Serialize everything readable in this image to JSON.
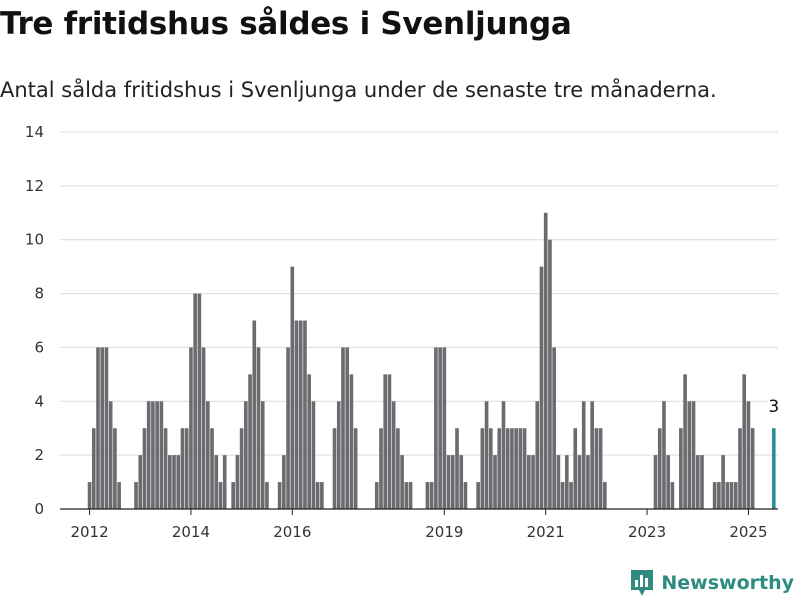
{
  "header": {
    "title": "Tre fritidshus såldes i Svenljunga",
    "subtitle": "Antal sålda fritidshus i Svenljunga under de senaste tre månaderna."
  },
  "brand": {
    "name": "Newsworthy",
    "logo_icon": "bar-chart-pin-icon",
    "color": "#2e8b7f"
  },
  "chart_data": {
    "type": "bar",
    "title": "Tre fritidshus såldes i Svenljunga",
    "subtitle": "Antal sålda fritidshus i Svenljunga under de senaste tre månaderna.",
    "xlabel": "",
    "ylabel": "",
    "ylim": [
      0,
      14
    ],
    "y_ticks": [
      0,
      2,
      4,
      6,
      8,
      10,
      12,
      14
    ],
    "x_ticks": [
      "2012",
      "2014",
      "2016",
      "2019",
      "2021",
      "2023",
      "2025"
    ],
    "grid": "horizontal",
    "x_start": "2011-06",
    "x_end": "2025-08",
    "highlight": {
      "month": "2025-07",
      "value": 3,
      "label": "3",
      "color": "#2a8f92"
    },
    "bar_color": "#6b6b70",
    "values": [
      {
        "x": "2012-01",
        "y": 1
      },
      {
        "x": "2012-02",
        "y": 3
      },
      {
        "x": "2012-03",
        "y": 6
      },
      {
        "x": "2012-04",
        "y": 6
      },
      {
        "x": "2012-05",
        "y": 6
      },
      {
        "x": "2012-06",
        "y": 4
      },
      {
        "x": "2012-07",
        "y": 3
      },
      {
        "x": "2012-08",
        "y": 1
      },
      {
        "x": "2012-12",
        "y": 1
      },
      {
        "x": "2013-01",
        "y": 2
      },
      {
        "x": "2013-02",
        "y": 3
      },
      {
        "x": "2013-03",
        "y": 4
      },
      {
        "x": "2013-04",
        "y": 4
      },
      {
        "x": "2013-05",
        "y": 4
      },
      {
        "x": "2013-06",
        "y": 4
      },
      {
        "x": "2013-07",
        "y": 3
      },
      {
        "x": "2013-08",
        "y": 2
      },
      {
        "x": "2013-09",
        "y": 2
      },
      {
        "x": "2013-10",
        "y": 2
      },
      {
        "x": "2013-11",
        "y": 3
      },
      {
        "x": "2013-12",
        "y": 3
      },
      {
        "x": "2014-01",
        "y": 6
      },
      {
        "x": "2014-02",
        "y": 8
      },
      {
        "x": "2014-03",
        "y": 8
      },
      {
        "x": "2014-04",
        "y": 6
      },
      {
        "x": "2014-05",
        "y": 4
      },
      {
        "x": "2014-06",
        "y": 3
      },
      {
        "x": "2014-07",
        "y": 2
      },
      {
        "x": "2014-08",
        "y": 1
      },
      {
        "x": "2014-09",
        "y": 2
      },
      {
        "x": "2014-11",
        "y": 1
      },
      {
        "x": "2014-12",
        "y": 2
      },
      {
        "x": "2015-01",
        "y": 3
      },
      {
        "x": "2015-02",
        "y": 4
      },
      {
        "x": "2015-03",
        "y": 5
      },
      {
        "x": "2015-04",
        "y": 7
      },
      {
        "x": "2015-05",
        "y": 6
      },
      {
        "x": "2015-06",
        "y": 4
      },
      {
        "x": "2015-07",
        "y": 1
      },
      {
        "x": "2015-10",
        "y": 1
      },
      {
        "x": "2015-11",
        "y": 2
      },
      {
        "x": "2015-12",
        "y": 6
      },
      {
        "x": "2016-01",
        "y": 9
      },
      {
        "x": "2016-02",
        "y": 7
      },
      {
        "x": "2016-03",
        "y": 7
      },
      {
        "x": "2016-04",
        "y": 7
      },
      {
        "x": "2016-05",
        "y": 5
      },
      {
        "x": "2016-06",
        "y": 4
      },
      {
        "x": "2016-07",
        "y": 1
      },
      {
        "x": "2016-08",
        "y": 1
      },
      {
        "x": "2016-11",
        "y": 3
      },
      {
        "x": "2016-12",
        "y": 4
      },
      {
        "x": "2017-01",
        "y": 6
      },
      {
        "x": "2017-02",
        "y": 6
      },
      {
        "x": "2017-03",
        "y": 5
      },
      {
        "x": "2017-04",
        "y": 3
      },
      {
        "x": "2017-09",
        "y": 1
      },
      {
        "x": "2017-10",
        "y": 3
      },
      {
        "x": "2017-11",
        "y": 5
      },
      {
        "x": "2017-12",
        "y": 5
      },
      {
        "x": "2018-01",
        "y": 4
      },
      {
        "x": "2018-02",
        "y": 3
      },
      {
        "x": "2018-03",
        "y": 2
      },
      {
        "x": "2018-04",
        "y": 1
      },
      {
        "x": "2018-05",
        "y": 1
      },
      {
        "x": "2018-09",
        "y": 1
      },
      {
        "x": "2018-10",
        "y": 1
      },
      {
        "x": "2018-11",
        "y": 6
      },
      {
        "x": "2018-12",
        "y": 6
      },
      {
        "x": "2019-01",
        "y": 6
      },
      {
        "x": "2019-02",
        "y": 2
      },
      {
        "x": "2019-03",
        "y": 2
      },
      {
        "x": "2019-04",
        "y": 3
      },
      {
        "x": "2019-05",
        "y": 2
      },
      {
        "x": "2019-06",
        "y": 1
      },
      {
        "x": "2019-09",
        "y": 1
      },
      {
        "x": "2019-10",
        "y": 3
      },
      {
        "x": "2019-11",
        "y": 4
      },
      {
        "x": "2019-12",
        "y": 3
      },
      {
        "x": "2020-01",
        "y": 2
      },
      {
        "x": "2020-02",
        "y": 3
      },
      {
        "x": "2020-03",
        "y": 4
      },
      {
        "x": "2020-04",
        "y": 3
      },
      {
        "x": "2020-05",
        "y": 3
      },
      {
        "x": "2020-06",
        "y": 3
      },
      {
        "x": "2020-07",
        "y": 3
      },
      {
        "x": "2020-08",
        "y": 3
      },
      {
        "x": "2020-09",
        "y": 2
      },
      {
        "x": "2020-10",
        "y": 2
      },
      {
        "x": "2020-11",
        "y": 4
      },
      {
        "x": "2020-12",
        "y": 9
      },
      {
        "x": "2021-01",
        "y": 11
      },
      {
        "x": "2021-02",
        "y": 10
      },
      {
        "x": "2021-03",
        "y": 6
      },
      {
        "x": "2021-04",
        "y": 2
      },
      {
        "x": "2021-05",
        "y": 1
      },
      {
        "x": "2021-06",
        "y": 2
      },
      {
        "x": "2021-07",
        "y": 1
      },
      {
        "x": "2021-08",
        "y": 3
      },
      {
        "x": "2021-09",
        "y": 2
      },
      {
        "x": "2021-10",
        "y": 4
      },
      {
        "x": "2021-11",
        "y": 2
      },
      {
        "x": "2021-12",
        "y": 4
      },
      {
        "x": "2022-01",
        "y": 3
      },
      {
        "x": "2022-02",
        "y": 3
      },
      {
        "x": "2022-03",
        "y": 1
      },
      {
        "x": "2023-03",
        "y": 2
      },
      {
        "x": "2023-04",
        "y": 3
      },
      {
        "x": "2023-05",
        "y": 4
      },
      {
        "x": "2023-06",
        "y": 2
      },
      {
        "x": "2023-07",
        "y": 1
      },
      {
        "x": "2023-09",
        "y": 3
      },
      {
        "x": "2023-10",
        "y": 5
      },
      {
        "x": "2023-11",
        "y": 4
      },
      {
        "x": "2023-12",
        "y": 4
      },
      {
        "x": "2024-01",
        "y": 2
      },
      {
        "x": "2024-02",
        "y": 2
      },
      {
        "x": "2024-05",
        "y": 1
      },
      {
        "x": "2024-06",
        "y": 1
      },
      {
        "x": "2024-07",
        "y": 2
      },
      {
        "x": "2024-08",
        "y": 1
      },
      {
        "x": "2024-09",
        "y": 1
      },
      {
        "x": "2024-10",
        "y": 1
      },
      {
        "x": "2024-11",
        "y": 3
      },
      {
        "x": "2024-12",
        "y": 5
      },
      {
        "x": "2025-01",
        "y": 4
      },
      {
        "x": "2025-02",
        "y": 3
      }
    ]
  }
}
